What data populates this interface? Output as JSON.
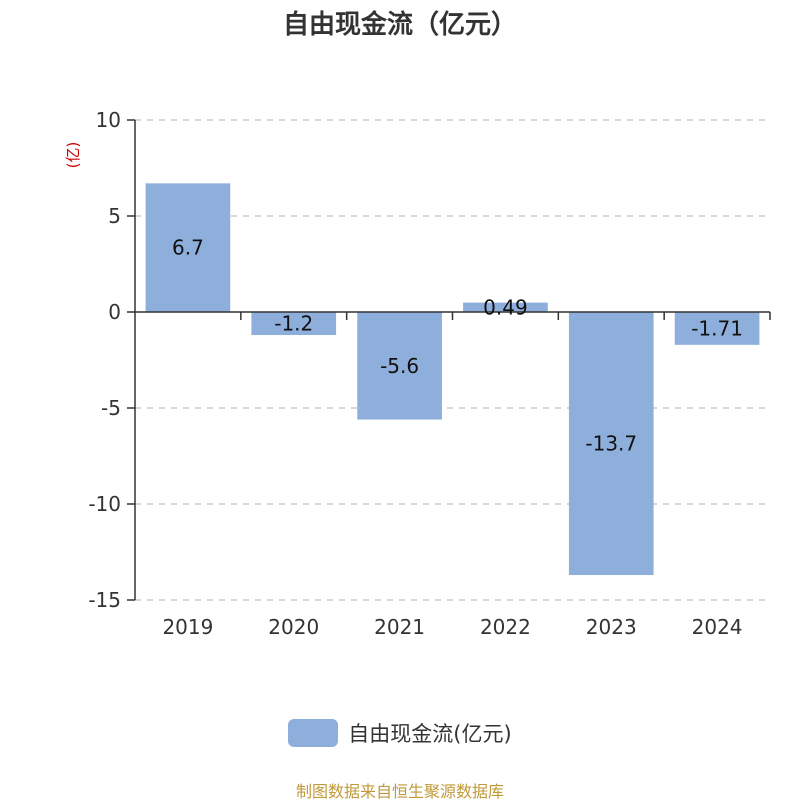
{
  "colors": {
    "bar": "#8EAEDB",
    "axis": "#333333",
    "grid": "#C8C8C8",
    "unit": "#CC0000",
    "source": "#C09A3A"
  },
  "source_note": "制图数据来自恒生聚源数据库",
  "chart_data": {
    "type": "bar",
    "title": "自由现金流（亿元）",
    "ylabel": "(亿)",
    "xlabel": "",
    "categories": [
      "2019",
      "2020",
      "2021",
      "2022",
      "2023",
      "2024"
    ],
    "series": [
      {
        "name": "自由现金流(亿元)",
        "values": [
          6.7,
          -1.2,
          -5.6,
          0.49,
          -13.7,
          -1.71
        ],
        "labels": [
          "6.7",
          "-1.2",
          "-5.6",
          "0.49",
          "-13.7",
          "-1.71"
        ]
      }
    ],
    "ylim": [
      -15,
      10
    ],
    "yticks": [
      10,
      5,
      0,
      -5,
      -10,
      -15
    ],
    "grid": true,
    "legend_position": "bottom"
  }
}
